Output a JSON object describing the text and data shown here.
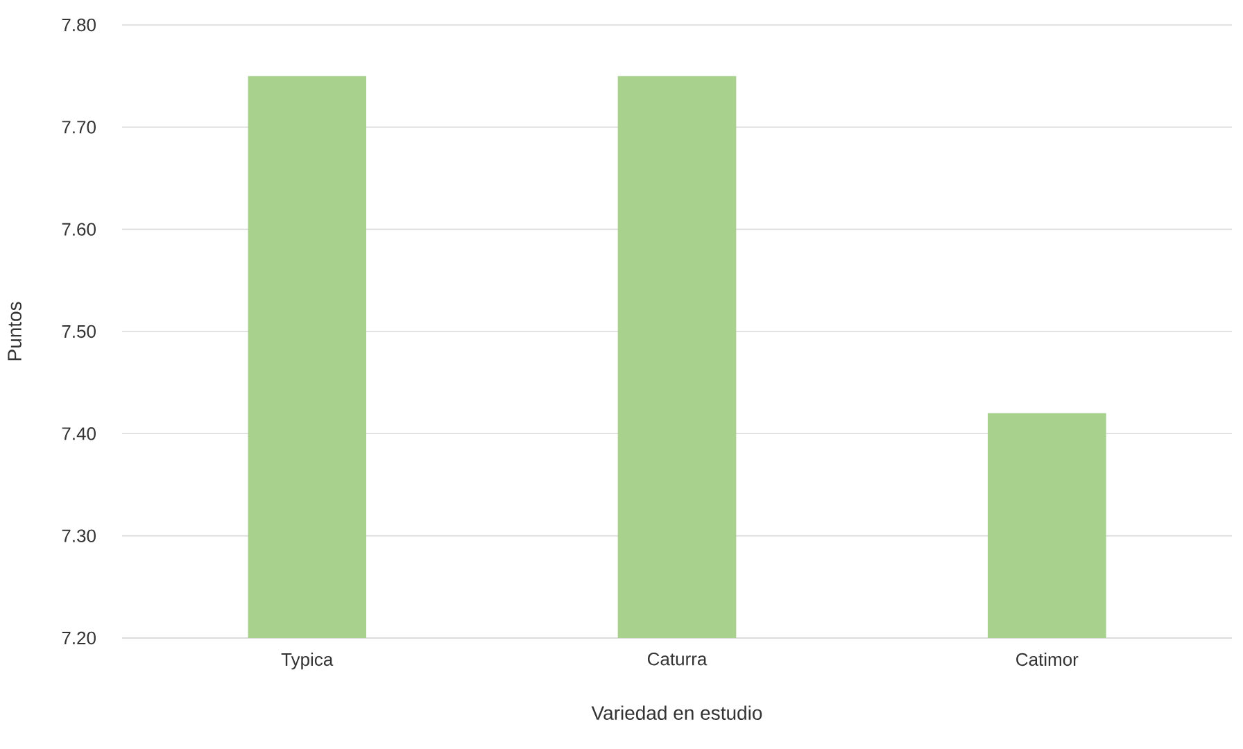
{
  "chart_data": {
    "type": "bar",
    "xlabel": "Variedad en estudio",
    "ylabel": "Puntos",
    "categories": [
      "Typica",
      "Caturra",
      "Catimor"
    ],
    "values": [
      7.75,
      7.75,
      7.42
    ],
    "color": "#a9d18e",
    "ylim": [
      7.2,
      7.8
    ],
    "yticks": [
      {
        "value": 7.2,
        "label": "7.20"
      },
      {
        "value": 7.3,
        "label": "7.30"
      },
      {
        "value": 7.4,
        "label": "7.40"
      },
      {
        "value": 7.5,
        "label": "7.50"
      },
      {
        "value": 7.6,
        "label": "7.60"
      },
      {
        "value": 7.7,
        "label": "7.70"
      },
      {
        "value": 7.8,
        "label": "7.80"
      }
    ],
    "grid": "y"
  }
}
